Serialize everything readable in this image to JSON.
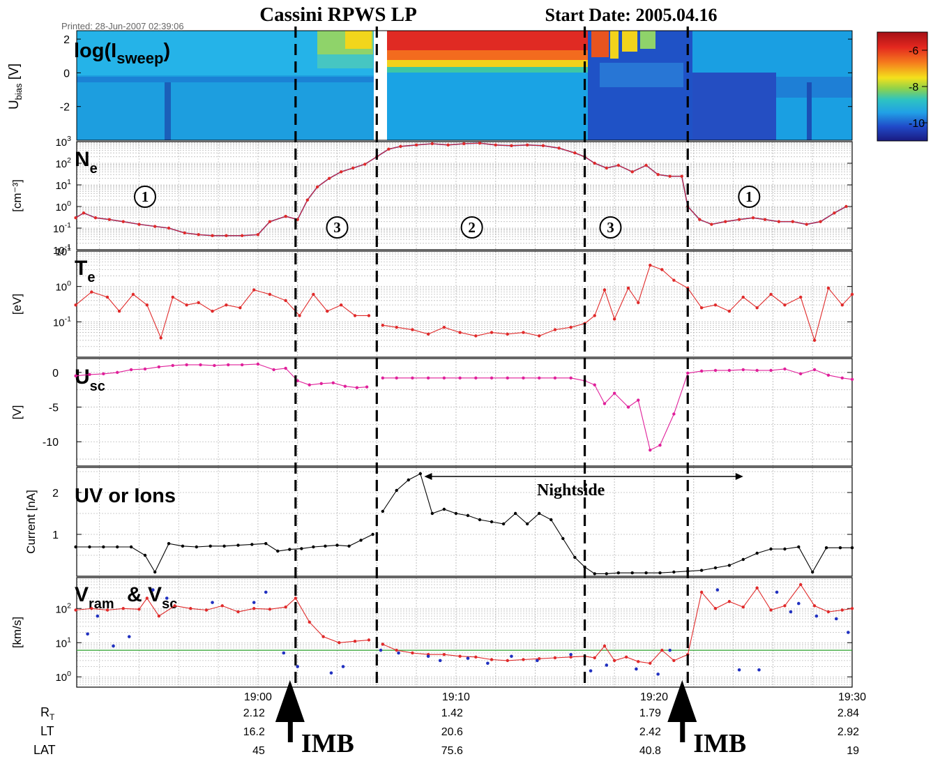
{
  "header": {
    "title": "Cassini RPWS LP",
    "start_date": "Start Date: 2005.04.16",
    "printed": "Printed: 28-Jun-2007 02:39:06"
  },
  "annotations": {
    "imb": "IMB",
    "nightside": "Nightside",
    "region_labels": [
      "1",
      "3",
      "2",
      "3",
      "1"
    ]
  },
  "colorbar": {
    "ticks": [
      "-6",
      "-8",
      "-10"
    ],
    "range": [
      -11,
      -5
    ]
  },
  "colors": {
    "red_series": "#e02a2a",
    "blue_series": "#2030c0",
    "magenta_series": "#e0209a",
    "black_series": "#000000",
    "green_line": "#2aa02a",
    "grid": "#bdbdbd",
    "spectrogram_background": "#1ea8e6"
  },
  "x_axis": {
    "ticks": [
      "19:00",
      "19:10",
      "19:20",
      "19:30"
    ],
    "tick_minutes": [
      0,
      10,
      20,
      30
    ],
    "range_minutes": [
      -9.15,
      30
    ],
    "row_labels": [
      "R_T",
      "LT",
      "LAT"
    ],
    "rows": {
      "R_T": [
        "2.12",
        "1.42",
        "1.79",
        "2.84"
      ],
      "LT": [
        "16.2",
        "20.6",
        "2.42",
        "2.92"
      ],
      "LAT": [
        "45",
        "75.6",
        "40.8",
        "19"
      ]
    }
  },
  "boundaries_minutes": [
    1.9,
    6.0,
    16.5,
    21.7
  ],
  "chart_data": [
    {
      "type": "heatmap",
      "title": "log(I_sweep)",
      "ylabel": "U_bias [V]",
      "ylim": [
        -4,
        2.5
      ],
      "yticks": [
        "2",
        "0",
        "-2"
      ],
      "segments": [
        {
          "x": [
            -9.15,
            5.8
          ],
          "level_v": 0.3,
          "upper": "cyan",
          "lower": "blue-cyan"
        },
        {
          "x": [
            -0.6,
            5.8
          ],
          "level_v": 1.4,
          "upper": "yellow-green patches"
        },
        {
          "x": [
            6.2,
            16.5
          ],
          "level_v": 0.8,
          "upper": "red",
          "lower": "blue-cyan"
        },
        {
          "x": [
            16.5,
            30
          ],
          "level_v": 0.0,
          "upper": "mixed",
          "lower": "dark blue"
        }
      ]
    },
    {
      "type": "line",
      "title": "N_e",
      "ylabel": "[cm^-3]",
      "yscale": "log",
      "ylim": [
        0.01,
        1000
      ],
      "yticks": [
        "10^3",
        "10^2",
        "10^1",
        "10^0",
        "10^-1",
        "10^-1"
      ],
      "series": [
        {
          "x": [
            -9.2,
            -8.8,
            -8.2,
            -7.5,
            -6.8,
            -6,
            -5.2,
            -4.5,
            -3.7,
            -3,
            -2.3,
            -1.6,
            -0.8,
            0,
            0.6,
            1.4,
            2.0,
            2.5,
            3.0,
            3.6,
            4.2,
            4.8,
            5.4,
            6.0,
            6.6,
            7.2,
            8,
            8.8,
            9.6,
            10.4,
            11.2,
            12,
            12.8,
            13.6,
            14.4,
            15.2,
            16,
            16.5,
            17,
            17.6,
            18.2,
            18.9,
            19.6,
            20.2,
            20.8,
            21.4,
            21.7,
            22.3,
            22.9,
            23.6,
            24.3,
            25,
            25.6,
            26.3,
            27,
            27.7,
            28.4,
            29.1,
            29.7
          ],
          "y": [
            0.3,
            0.5,
            0.3,
            0.25,
            0.2,
            0.15,
            0.12,
            0.1,
            0.06,
            0.05,
            0.045,
            0.045,
            0.045,
            0.05,
            0.2,
            0.35,
            0.25,
            2,
            8,
            20,
            40,
            60,
            90,
            200,
            450,
            600,
            700,
            800,
            700,
            800,
            850,
            700,
            650,
            700,
            650,
            500,
            300,
            200,
            100,
            60,
            80,
            40,
            80,
            30,
            25,
            25,
            1.0,
            0.25,
            0.15,
            0.2,
            0.25,
            0.3,
            0.25,
            0.2,
            0.2,
            0.15,
            0.2,
            0.5,
            1.0
          ]
        }
      ]
    },
    {
      "type": "line",
      "title": "T_e",
      "ylabel": "[eV]",
      "yscale": "log",
      "ylim": [
        0.01,
        10
      ],
      "yticks": [
        "10^1",
        "10^0",
        "10^-1"
      ],
      "series": [
        {
          "x": [
            -9.2,
            -8.4,
            -7.6,
            -7,
            -6.3,
            -5.6,
            -4.9,
            -4.3,
            -3.6,
            -3,
            -2.3,
            -1.6,
            -0.9,
            -0.2,
            0.6,
            1.4,
            2.1,
            2.8,
            3.5,
            4.2,
            4.9,
            5.6,
            6.3,
            7,
            7.8,
            8.6,
            9.4,
            10.2,
            11,
            11.8,
            12.6,
            13.4,
            14.2,
            15,
            15.8,
            16.5,
            17,
            17.5,
            18,
            18.7,
            19.2,
            19.8,
            20.4,
            21,
            21.7,
            22.4,
            23.1,
            23.8,
            24.5,
            25.2,
            25.9,
            26.6,
            27.4,
            28.1,
            28.8,
            29.5,
            30
          ],
          "y": [
            0.3,
            0.7,
            0.5,
            0.2,
            0.6,
            0.3,
            0.035,
            0.5,
            0.3,
            0.35,
            0.2,
            0.3,
            0.25,
            0.8,
            0.6,
            0.4,
            0.15,
            0.6,
            0.2,
            0.3,
            0.15,
            0.15,
            0.08,
            0.07,
            0.06,
            0.045,
            0.07,
            0.05,
            0.04,
            0.05,
            0.045,
            0.05,
            0.04,
            0.06,
            0.07,
            0.09,
            0.15,
            0.8,
            0.12,
            0.9,
            0.35,
            4,
            3,
            1.5,
            0.9,
            0.25,
            0.3,
            0.2,
            0.5,
            0.25,
            0.6,
            0.3,
            0.5,
            0.03,
            0.9,
            0.3,
            0.6
          ]
        }
      ]
    },
    {
      "type": "line",
      "title": "U_sc",
      "ylabel": "[V]",
      "ylim": [
        -13.5,
        2
      ],
      "yticks": [
        "0",
        "-5",
        "-10"
      ],
      "series": [
        {
          "x": [
            -9.2,
            -8.5,
            -7.8,
            -7.1,
            -6.4,
            -5.7,
            -5,
            -4.3,
            -3.6,
            -2.9,
            -2.2,
            -1.5,
            -0.8,
            0,
            0.8,
            1.4,
            2.0,
            2.6,
            3.2,
            3.8,
            4.4,
            5.0,
            5.5,
            6.3,
            7,
            7.8,
            8.6,
            9.4,
            10.2,
            11,
            11.8,
            12.6,
            13.4,
            14.2,
            15,
            15.8,
            16.5,
            17,
            17.5,
            18,
            18.7,
            19.2,
            19.8,
            20.3,
            21,
            21.7,
            22.4,
            23.1,
            23.8,
            24.5,
            25.2,
            25.9,
            26.6,
            27.4,
            28.1,
            28.8,
            29.5,
            30
          ],
          "y": [
            -0.5,
            -0.3,
            -0.2,
            0,
            0.4,
            0.5,
            0.8,
            1,
            1.1,
            1.1,
            1,
            1.1,
            1.1,
            1.2,
            0.4,
            0.6,
            -1.2,
            -1.8,
            -1.6,
            -1.5,
            -2.0,
            -2.2,
            -2.1,
            -0.8,
            -0.8,
            -0.8,
            -0.8,
            -0.8,
            -0.8,
            -0.8,
            -0.8,
            -0.8,
            -0.8,
            -0.8,
            -0.8,
            -0.8,
            -1.2,
            -1.8,
            -4.5,
            -3.0,
            -5.0,
            -4.0,
            -11.2,
            -10.5,
            -6.0,
            -0.1,
            0.2,
            0.3,
            0.3,
            0.4,
            0.3,
            0.3,
            0.5,
            -0.2,
            0.4,
            -0.4,
            -0.8,
            -1.0
          ]
        }
      ]
    },
    {
      "type": "line",
      "title": "UV or Ions",
      "ylabel": "Current [nA]",
      "ylim": [
        0,
        2.6
      ],
      "yticks": [
        "2",
        "1"
      ],
      "series": [
        {
          "x": [
            -9.2,
            -8.5,
            -7.8,
            -7.1,
            -6.4,
            -5.7,
            -5.2,
            -4.5,
            -3.8,
            -3.1,
            -2.4,
            -1.7,
            -1,
            -0.3,
            0.4,
            1.0,
            1.6,
            2.2,
            2.8,
            3.4,
            4.0,
            4.6,
            5.2,
            5.8,
            6.3,
            7,
            7.6,
            8.2,
            8.8,
            9.4,
            10,
            10.6,
            11.2,
            11.8,
            12.4,
            13,
            13.6,
            14.2,
            14.8,
            15.4,
            16,
            16.5,
            17,
            17.6,
            18.2,
            18.9,
            19.6,
            20.3,
            21,
            21.7,
            22.4,
            23.1,
            23.8,
            24.5,
            25.2,
            25.9,
            26.6,
            27.3,
            28,
            28.7,
            29.4,
            30
          ],
          "y": [
            0.7,
            0.7,
            0.7,
            0.7,
            0.7,
            0.5,
            0.1,
            0.78,
            0.72,
            0.7,
            0.72,
            0.72,
            0.74,
            0.76,
            0.78,
            0.6,
            0.64,
            0.66,
            0.7,
            0.72,
            0.74,
            0.72,
            0.86,
            1.0,
            1.55,
            2.05,
            2.3,
            2.45,
            1.5,
            1.6,
            1.5,
            1.45,
            1.35,
            1.3,
            1.25,
            1.5,
            1.25,
            1.5,
            1.35,
            0.9,
            0.45,
            0.22,
            0.06,
            0.06,
            0.08,
            0.08,
            0.08,
            0.08,
            0.1,
            0.12,
            0.14,
            0.2,
            0.26,
            0.4,
            0.55,
            0.65,
            0.65,
            0.7,
            0.1,
            0.68,
            0.68,
            0.68
          ]
        }
      ]
    },
    {
      "type": "line",
      "title": "V_ram & V_sc",
      "ylabel": "[km/s]",
      "yscale": "log",
      "ylim": [
        0.5,
        800
      ],
      "yticks": [
        "10^2",
        "10^1",
        "10^0"
      ],
      "series": [
        {
          "x": [
            -9.2,
            -8.4,
            -7.6,
            -6.8,
            -6,
            -5.6,
            -5,
            -4.2,
            -3.4,
            -2.6,
            -1.8,
            -1,
            -0.2,
            0.6,
            1.4,
            1.9,
            2.6,
            3.3,
            4.1,
            4.9,
            5.6,
            6.3,
            7,
            7.8,
            8.6,
            9.4,
            10.2,
            11,
            11.8,
            12.6,
            13.4,
            14.2,
            15,
            15.8,
            16.5,
            17,
            17.5,
            18,
            18.6,
            19.2,
            19.8,
            20.4,
            21,
            21.7,
            22.4,
            23.1,
            23.8,
            24.5,
            25.2,
            25.9,
            26.6,
            27.4,
            28.1,
            28.8,
            29.5,
            30
          ],
          "y": [
            90,
            100,
            90,
            100,
            95,
            200,
            60,
            120,
            100,
            90,
            120,
            80,
            100,
            95,
            110,
            200,
            40,
            15,
            10,
            11,
            12,
            9,
            6,
            5,
            4.5,
            4.5,
            4,
            3.8,
            3.2,
            3,
            3.2,
            3.4,
            3.6,
            3.8,
            4,
            3.6,
            8,
            3,
            3.8,
            2.8,
            2.5,
            6,
            3,
            4.5,
            300,
            100,
            160,
            110,
            400,
            90,
            120,
            500,
            120,
            80,
            90,
            100
          ]
        },
        {
          "x": [
            -8.6,
            -8.1,
            -7.3,
            -6.5,
            -5.3,
            -4.6,
            -2.3,
            -0.2,
            0.4,
            1.3,
            2.0,
            3.7,
            4.3,
            6.2,
            7.1,
            8.6,
            9.2,
            10.6,
            11.6,
            12.8,
            14.1,
            15.8,
            16.8,
            17.6,
            19.1,
            20.2,
            20.8,
            23.2,
            24.3,
            25.3,
            26.2,
            26.9,
            27.3,
            28.2,
            29.2,
            29.8
          ],
          "y": [
            18,
            60,
            8,
            15,
            350,
            200,
            150,
            150,
            300,
            5,
            2.0,
            1.3,
            2.0,
            6,
            5,
            4,
            3,
            3.5,
            2.5,
            4.0,
            3.0,
            4.5,
            1.5,
            2.2,
            1.7,
            1.2,
            6,
            350,
            1.6,
            1.6,
            300,
            80,
            140,
            60,
            50,
            20
          ]
        }
      ],
      "reference_line_y": 6
    }
  ]
}
